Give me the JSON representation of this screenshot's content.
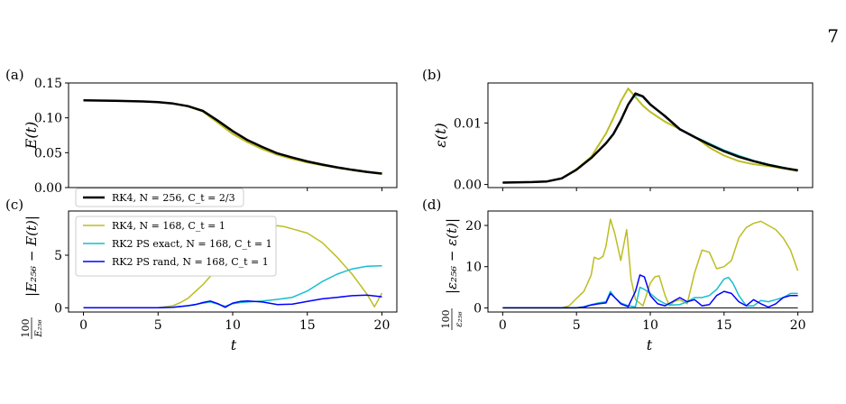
{
  "page_number": "7",
  "caption_fragment": "",
  "colors": {
    "rk4_ref": "#000000",
    "rk4_168": "#bcbd22",
    "rk2_exact": "#17becf",
    "rk2_rand": "#0000ff"
  },
  "chart_data": [
    {
      "panel": "(a)",
      "type": "line",
      "ylabel": "E(t)",
      "xlabel": "",
      "xlim": [
        -1,
        21
      ],
      "ylim": [
        0,
        0.15
      ],
      "xticks": [
        0,
        5,
        10,
        15,
        20
      ],
      "yticks": [
        0.0,
        0.05,
        0.1,
        0.15
      ],
      "ytick_labels": [
        "0.00",
        "0.05",
        "0.10",
        "0.15"
      ],
      "xtick_labels_visible": false,
      "legend": [
        {
          "label": "RK4, N = 256, C_t = 2/3",
          "color": "#000000"
        }
      ],
      "legend_placement": "below-left",
      "series": [
        {
          "name": "RK4, N = 168, C_t = 1",
          "color": "#bcbd22",
          "width": 2,
          "x": [
            0,
            2,
            4,
            5,
            6,
            7,
            8,
            9,
            10,
            11,
            12,
            13,
            14,
            15,
            16,
            17,
            18,
            19,
            20
          ],
          "y": [
            0.125,
            0.1245,
            0.1235,
            0.1225,
            0.1205,
            0.1165,
            0.109,
            0.093,
            0.077,
            0.065,
            0.055,
            0.047,
            0.041,
            0.036,
            0.032,
            0.0285,
            0.025,
            0.022,
            0.0195
          ]
        },
        {
          "name": "RK2 PS exact, N = 168, C_t = 1",
          "color": "#17becf",
          "width": 1.5,
          "x": [
            0,
            2,
            4,
            5,
            6,
            7,
            8,
            9,
            10,
            11,
            12,
            13,
            14,
            15,
            16,
            17,
            18,
            19,
            20
          ],
          "y": [
            0.125,
            0.1245,
            0.1235,
            0.1225,
            0.1205,
            0.1168,
            0.11,
            0.096,
            0.081,
            0.068,
            0.058,
            0.049,
            0.043,
            0.0375,
            0.033,
            0.029,
            0.0255,
            0.0225,
            0.02
          ]
        },
        {
          "name": "RK2 PS rand, N = 168, C_t = 1",
          "color": "#0000ff",
          "width": 1.5,
          "x": [
            0,
            2,
            4,
            5,
            6,
            7,
            8,
            9,
            10,
            11,
            12,
            13,
            14,
            15,
            16,
            17,
            18,
            19,
            20
          ],
          "y": [
            0.125,
            0.1245,
            0.1235,
            0.1225,
            0.1205,
            0.1168,
            0.1102,
            0.0965,
            0.0815,
            0.0685,
            0.0585,
            0.0495,
            0.0432,
            0.0377,
            0.0332,
            0.0292,
            0.0257,
            0.0227,
            0.0202
          ]
        },
        {
          "name": "RK4, N = 256, C_t = 2/3",
          "color": "#000000",
          "width": 2.5,
          "x": [
            0,
            2,
            4,
            5,
            6,
            7,
            8,
            9,
            10,
            11,
            12,
            13,
            14,
            15,
            16,
            17,
            18,
            19,
            20
          ],
          "y": [
            0.125,
            0.1245,
            0.1235,
            0.1225,
            0.1205,
            0.1168,
            0.11,
            0.096,
            0.081,
            0.068,
            0.058,
            0.049,
            0.043,
            0.0375,
            0.033,
            0.029,
            0.0255,
            0.0225,
            0.02
          ]
        }
      ]
    },
    {
      "panel": "(b)",
      "type": "line",
      "ylabel": "ε(t)",
      "xlabel": "",
      "xlim": [
        -1,
        21
      ],
      "ylim": [
        -0.0005,
        0.0165
      ],
      "xticks": [
        0,
        5,
        10,
        15,
        20
      ],
      "yticks": [
        0.0,
        0.01
      ],
      "ytick_labels": [
        "0.00",
        "0.01"
      ],
      "xtick_labels_visible": false,
      "series": [
        {
          "name": "RK4, N = 168, C_t = 1",
          "color": "#bcbd22",
          "width": 2,
          "x": [
            0,
            2,
            3,
            4,
            5,
            6,
            7,
            7.5,
            8,
            8.5,
            9,
            9.5,
            10,
            11,
            12,
            13,
            14,
            15,
            16,
            17,
            18,
            19,
            20
          ],
          "y": [
            0.0003,
            0.0004,
            0.0005,
            0.001,
            0.0025,
            0.0045,
            0.0083,
            0.0108,
            0.0135,
            0.0156,
            0.0142,
            0.0128,
            0.0118,
            0.0102,
            0.009,
            0.0078,
            0.006,
            0.0047,
            0.0038,
            0.0033,
            0.003,
            0.0026,
            0.0022
          ]
        },
        {
          "name": "RK2 PS exact, N = 168, C_t = 1",
          "color": "#17becf",
          "width": 1.5,
          "x": [
            0,
            2,
            3,
            4,
            5,
            6,
            7,
            7.5,
            8,
            8.5,
            9,
            9.5,
            10,
            11,
            12,
            13,
            14,
            15,
            16,
            17,
            18,
            19,
            20
          ],
          "y": [
            0.0003,
            0.0004,
            0.0005,
            0.001,
            0.0024,
            0.0043,
            0.0068,
            0.0083,
            0.0105,
            0.013,
            0.0145,
            0.0143,
            0.013,
            0.0112,
            0.009,
            0.0078,
            0.0067,
            0.0056,
            0.0047,
            0.0039,
            0.0033,
            0.0028,
            0.0023
          ]
        },
        {
          "name": "RK2 PS rand, N = 168, C_t = 1",
          "color": "#0000ff",
          "width": 1.5,
          "x": [
            0,
            2,
            3,
            4,
            5,
            6,
            7,
            7.5,
            8,
            8.5,
            9,
            9.5,
            10,
            11,
            12,
            13,
            14,
            15,
            16,
            17,
            18,
            19,
            20
          ],
          "y": [
            0.0003,
            0.0004,
            0.0005,
            0.001,
            0.0024,
            0.0043,
            0.0067,
            0.0082,
            0.0104,
            0.013,
            0.0148,
            0.0144,
            0.0131,
            0.011,
            0.0089,
            0.0077,
            0.0065,
            0.0054,
            0.0045,
            0.0038,
            0.0032,
            0.0027,
            0.0023
          ]
        },
        {
          "name": "RK4, N = 256, C_t = 2/3",
          "color": "#000000",
          "width": 2.5,
          "x": [
            0,
            2,
            3,
            4,
            5,
            6,
            7,
            7.5,
            8,
            8.5,
            9,
            9.5,
            10,
            11,
            12,
            13,
            14,
            15,
            16,
            17,
            18,
            19,
            20
          ],
          "y": [
            0.0003,
            0.0004,
            0.0005,
            0.001,
            0.0024,
            0.0043,
            0.0067,
            0.0082,
            0.0104,
            0.013,
            0.0148,
            0.0143,
            0.013,
            0.0111,
            0.009,
            0.0077,
            0.0065,
            0.0054,
            0.0045,
            0.0038,
            0.0032,
            0.0027,
            0.0023
          ]
        }
      ]
    },
    {
      "panel": "(c)",
      "type": "line",
      "ylabel": "100/E_256 |E_256 − E(t)|",
      "xlabel": "t",
      "xlim": [
        -1,
        21
      ],
      "ylim": [
        -0.4,
        9.2
      ],
      "xticks": [
        0,
        5,
        10,
        15,
        20
      ],
      "xtick_labels": [
        "0",
        "5",
        "10",
        "15",
        "20"
      ],
      "yticks": [
        0,
        5
      ],
      "ytick_labels": [
        "0",
        "5"
      ],
      "legend": [
        {
          "label": "RK4, N = 168, C_t = 1",
          "color": "#bcbd22"
        },
        {
          "label": "RK2 PS exact, N = 168, C_t = 1",
          "color": "#17becf"
        },
        {
          "label": "RK2 PS rand, N = 168, C_t = 1",
          "color": "#0000ff"
        }
      ],
      "legend_placement": "upper-left",
      "series": [
        {
          "name": "RK4, N = 168, C_t = 1",
          "color": "#bcbd22",
          "width": 1.5,
          "x": [
            0,
            5,
            6,
            6.5,
            7,
            8,
            9,
            10,
            11,
            12,
            12.5,
            13,
            13.5,
            14,
            15,
            16,
            17,
            18,
            19,
            19.5,
            20
          ],
          "y": [
            0,
            0,
            0.2,
            0.5,
            0.9,
            2.2,
            3.8,
            5.3,
            6.4,
            7.2,
            7.6,
            7.8,
            7.7,
            7.5,
            7.1,
            6.2,
            4.8,
            3.2,
            1.3,
            0.1,
            1.4
          ]
        },
        {
          "name": "RK2 PS exact, N = 168, C_t = 1",
          "color": "#17becf",
          "width": 1.5,
          "x": [
            0,
            5,
            6,
            7,
            8,
            8.5,
            9,
            9.5,
            10,
            10.5,
            11,
            12,
            13,
            14,
            15,
            16,
            17,
            18,
            19,
            20
          ],
          "y": [
            0,
            0,
            0.05,
            0.2,
            0.45,
            0.55,
            0.35,
            0.15,
            0.4,
            0.5,
            0.55,
            0.65,
            0.8,
            1.0,
            1.6,
            2.5,
            3.2,
            3.7,
            3.95,
            4.0
          ]
        },
        {
          "name": "RK2 PS rand, N = 168, C_t = 1",
          "color": "#0000ff",
          "width": 1.5,
          "x": [
            0,
            5,
            6,
            7,
            7.5,
            8,
            8.5,
            9,
            9.5,
            10,
            10.5,
            11,
            12,
            13,
            14,
            15,
            16,
            17,
            18,
            19,
            20
          ],
          "y": [
            0,
            0,
            0.05,
            0.2,
            0.3,
            0.5,
            0.65,
            0.4,
            0.05,
            0.45,
            0.6,
            0.65,
            0.55,
            0.3,
            0.35,
            0.6,
            0.85,
            1.0,
            1.15,
            1.2,
            1.05
          ]
        }
      ]
    },
    {
      "panel": "(d)",
      "type": "line",
      "ylabel": "100/ε_256 |ε_256 − ε(t)|",
      "xlabel": "t",
      "xlim": [
        -1,
        21
      ],
      "ylim": [
        -1,
        23.5
      ],
      "xticks": [
        0,
        5,
        10,
        15,
        20
      ],
      "xtick_labels": [
        "0",
        "5",
        "10",
        "15",
        "20"
      ],
      "yticks": [
        0,
        10,
        20
      ],
      "ytick_labels": [
        "0",
        "10",
        "20"
      ],
      "series": [
        {
          "name": "RK4, N = 168, C_t = 1",
          "color": "#bcbd22",
          "width": 1.5,
          "x": [
            0,
            4,
            4.5,
            5,
            5.5,
            6,
            6.2,
            6.5,
            6.8,
            7,
            7.3,
            7.6,
            8,
            8.4,
            8.7,
            9,
            9.5,
            10,
            10.3,
            10.6,
            11,
            11.3,
            11.6,
            12,
            12.5,
            13,
            13.5,
            14,
            14.5,
            15,
            15.5,
            16,
            16.5,
            17,
            17.5,
            18,
            18.5,
            19,
            19.5,
            20
          ],
          "y": [
            0,
            0,
            0.5,
            2.3,
            4,
            8,
            12.3,
            11.8,
            12.5,
            15,
            21.5,
            18,
            11.5,
            19,
            7,
            2,
            0.5,
            6,
            7.5,
            7.8,
            3,
            0.5,
            1.5,
            2,
            1,
            8.5,
            14,
            13.5,
            9.5,
            10,
            11.5,
            17,
            19.5,
            20.5,
            21,
            20,
            19,
            17,
            14,
            9
          ]
        },
        {
          "name": "RK2 PS exact, N = 168, C_t = 1",
          "color": "#17becf",
          "width": 1.5,
          "x": [
            0,
            5,
            5.5,
            6,
            6.5,
            7,
            7.3,
            7.6,
            8,
            8.5,
            9,
            9.3,
            9.6,
            10,
            10.5,
            11,
            11.5,
            12,
            12.5,
            13,
            13.5,
            14,
            14.5,
            15,
            15.3,
            15.6,
            16,
            16.5,
            17,
            17.5,
            18,
            18.5,
            19,
            19.5,
            20
          ],
          "y": [
            0,
            0,
            0.3,
            0.8,
            1.2,
            1.5,
            4,
            2.5,
            1.2,
            0.5,
            0.3,
            5,
            4.5,
            3.5,
            2,
            1,
            0.7,
            0.8,
            1.5,
            2.5,
            2.5,
            3,
            4.5,
            7,
            7.4,
            6,
            3,
            0.5,
            0.5,
            1.8,
            1.5,
            2,
            2.5,
            3.5,
            3.5
          ]
        },
        {
          "name": "RK2 PS rand, N = 168, C_t = 1",
          "color": "#0000ff",
          "width": 1.5,
          "x": [
            0,
            5,
            5.5,
            6,
            6.5,
            7,
            7.3,
            7.6,
            8,
            8.5,
            9,
            9.3,
            9.6,
            10,
            10.5,
            11,
            11.5,
            12,
            12.5,
            13,
            13.5,
            14,
            14.5,
            15,
            15.5,
            16,
            16.5,
            17,
            17.5,
            18,
            18.5,
            19,
            19.5,
            20
          ],
          "y": [
            0,
            0,
            0.2,
            0.7,
            1,
            1.2,
            3.5,
            2.5,
            1,
            0.3,
            4,
            8,
            7.5,
            3,
            1,
            0.5,
            1.5,
            2.5,
            1.5,
            2,
            0.5,
            0.8,
            3,
            4,
            3.5,
            1.5,
            0.5,
            2,
            1,
            0.2,
            1,
            2.5,
            3,
            3
          ]
        },
        {
          "name": "RK4, N = 256, C_t = 2/3",
          "color": "#000000",
          "width": 1,
          "x": [
            0,
            20
          ],
          "y": [
            0,
            0
          ]
        }
      ]
    }
  ]
}
